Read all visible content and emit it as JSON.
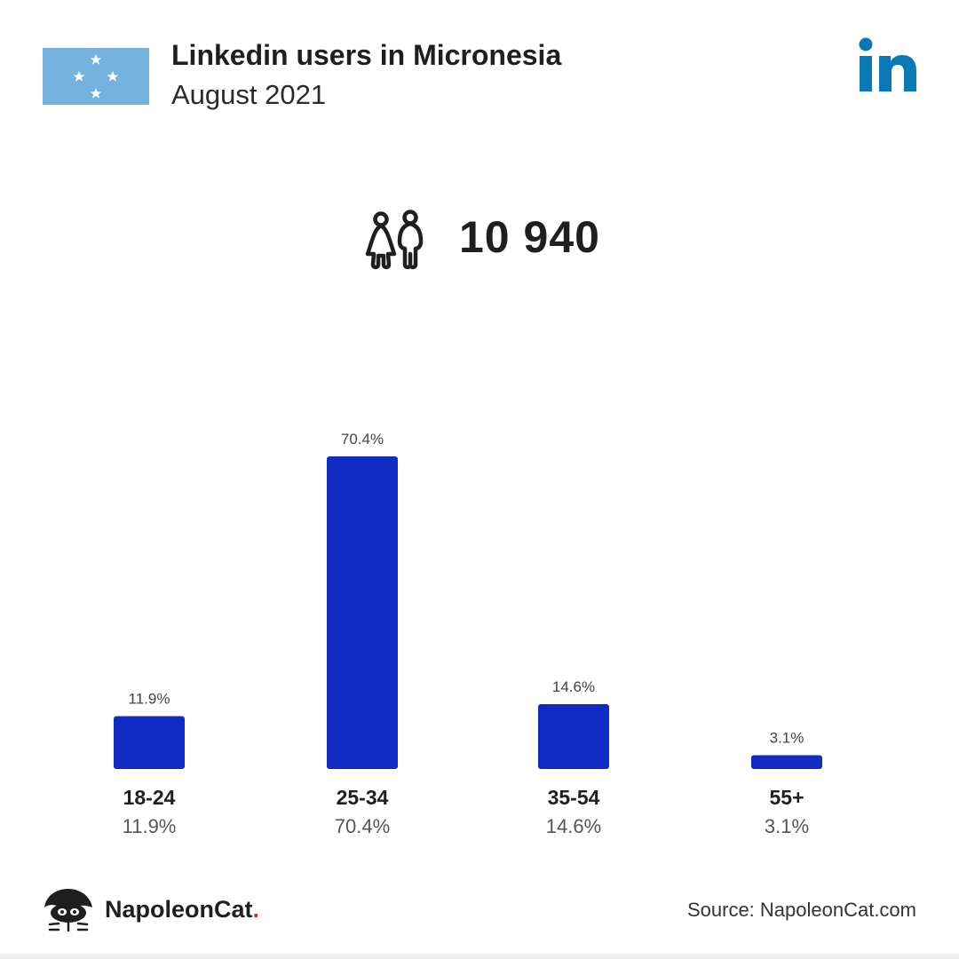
{
  "header": {
    "title": "Linkedin users in Micronesia",
    "subtitle": "August 2021"
  },
  "icons": {
    "flag": "micronesia-flag-icon",
    "logo": "linkedin-logo-icon",
    "people": "people-icon",
    "brand": "napoleoncat-logo-icon"
  },
  "total": "10 940",
  "chart_data": {
    "type": "bar",
    "title": "",
    "xlabel": "",
    "ylabel": "",
    "categories": [
      "18-24",
      "25-34",
      "35-54",
      "55+"
    ],
    "values": [
      11.9,
      70.4,
      14.6,
      3.1
    ],
    "value_labels": [
      "11.9%",
      "70.4%",
      "14.6%",
      "3.1%"
    ],
    "ylim": [
      0,
      70.4
    ],
    "grid": false,
    "bar_color": "#102bc3"
  },
  "footer": {
    "brand_name": "NapoleonCat",
    "brand_dot": ".",
    "source": "Source: NapoleonCat.com"
  },
  "colors": {
    "flag_blue": "#75b2dd",
    "linkedin_blue": "#0a78b5",
    "brand_red": "#e0312b"
  }
}
